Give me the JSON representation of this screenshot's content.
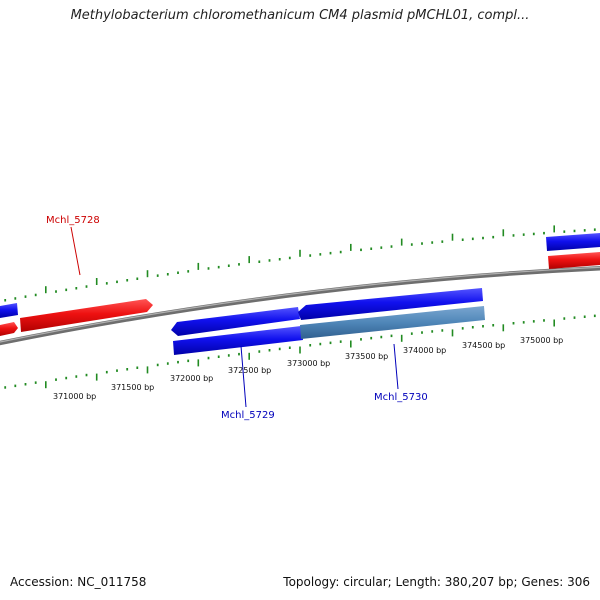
{
  "title": "Methylobacterium chloromethanicum CM4 plasmid pMCHL01, compl...",
  "footer": {
    "accession": "Accession: NC_011758",
    "summary": "Topology: circular; Length: 380,207 bp; Genes: 306"
  },
  "colors": {
    "forward_gene": "#ee1111",
    "reverse_gene": "#1111ee",
    "highlight_gene": "#4f86b8",
    "backbone": "#808080",
    "tick": "#228b22",
    "forward_label": "#cc0000",
    "reverse_label": "#0000bb"
  },
  "ruler_labels": [
    "371000 bp",
    "371500 bp",
    "372000 bp",
    "372500 bp",
    "373000 bp",
    "373500 bp",
    "374000 bp",
    "374500 bp",
    "375000 bp"
  ],
  "gene_labels": [
    {
      "text": "Mchl_5728",
      "strand": "forward"
    },
    {
      "text": "Mchl_5729",
      "strand": "reverse"
    },
    {
      "text": "Mchl_5730",
      "strand": "reverse"
    }
  ]
}
